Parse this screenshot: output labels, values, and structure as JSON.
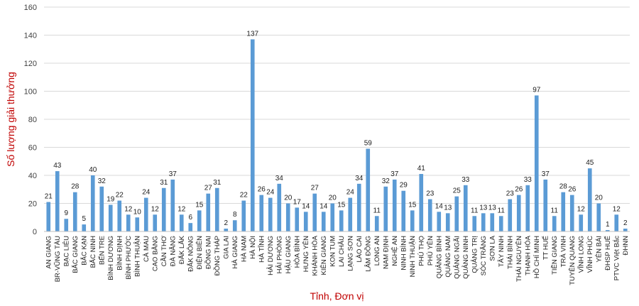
{
  "chart_data": {
    "type": "bar",
    "xlabel": "Tỉnh, Đơn vị",
    "ylabel": "Số lượng giải thưởng",
    "ylim": [
      0,
      160
    ],
    "yticks": [
      0,
      20,
      40,
      60,
      80,
      100,
      120,
      140,
      160
    ],
    "grid": true,
    "bar_color": "#5b9bd5",
    "axis_title_color": "#c00000",
    "categories": [
      "AN GIANG",
      "BR-VŨNG TÀU",
      "BẠC LIÊU",
      "BẮC GIANG",
      "BẮC KẠN",
      "BẮC NINH",
      "BẾN TRE",
      "BÌNH DƯƠNG",
      "BÌNH ĐỊNH",
      "BÌNH PHƯỚC",
      "BÌNH THUẬN",
      "CÀ MAU",
      "CAO BẰNG",
      "CẦN THƠ",
      "ĐÀ NẴNG",
      "ĐẮK LẮK",
      "ĐẮK NÔNG",
      "ĐIỆN BIÊN",
      "ĐỒNG NAI",
      "ĐỒNG THÁP",
      "GIA LAI",
      "HÀ GIANG",
      "HÀ NAM",
      "HÀ NỘI",
      "HÀ TĨNH",
      "HẢI DƯƠNG",
      "HẢI PHÒNG",
      "HẬU GIANG",
      "HÒA BÌNH",
      "HƯNG YÊN",
      "KHÁNH HÒA",
      "KIÊN GIANG",
      "KON TUM",
      "LAI CHÂU",
      "LẠNG SƠN",
      "LÀO CAI",
      "LÂM ĐỒNG",
      "LONG AN",
      "NAM ĐỊNH",
      "NGHỆ AN",
      "NINH BÌNH",
      "NINH THUẬN",
      "PHÚ THỌ",
      "PHÚ YÊN",
      "QUẢNG BÌNH",
      "QUẢNG NAM",
      "QUẢNG NGÃI",
      "QUẢNG NINH",
      "QUẢNG TRỊ",
      "SÓC TRĂNG",
      "SƠN LA",
      "TÂY NINH",
      "THÁI BÌNH",
      "THÁI NGUYÊN",
      "THANH HÓA",
      "HỒ CHÍ MINH",
      "TT HUẾ",
      "TIỀN GIANG",
      "TRÀ VINH",
      "TUYÊN QUANG",
      "VĨNH LONG",
      "VĨNH PHÚC",
      "YÊN BÁI",
      "ĐHSP HUẾ",
      "PTVC Việt Bắc",
      "ĐHNN"
    ],
    "values": [
      21,
      43,
      9,
      28,
      5,
      40,
      32,
      19,
      22,
      12,
      10,
      24,
      12,
      31,
      37,
      12,
      6,
      15,
      27,
      31,
      2,
      8,
      22,
      137,
      26,
      24,
      34,
      20,
      17,
      14,
      27,
      14,
      20,
      15,
      24,
      34,
      59,
      11,
      32,
      37,
      29,
      15,
      41,
      23,
      14,
      13,
      25,
      33,
      11,
      13,
      13,
      11,
      23,
      26,
      33,
      97,
      37,
      11,
      28,
      26,
      12,
      45,
      20,
      1,
      12,
      2
    ]
  }
}
